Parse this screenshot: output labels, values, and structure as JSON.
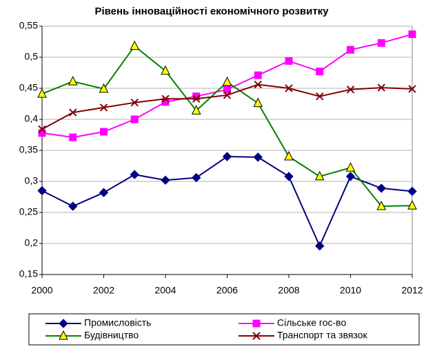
{
  "chart_data": {
    "type": "line",
    "title": "Рівень інноваційності економічного розвитку",
    "x": [
      2000,
      2001,
      2002,
      2003,
      2004,
      2005,
      2006,
      2007,
      2008,
      2009,
      2010,
      2011,
      2012
    ],
    "series": [
      {
        "name": "Промисловість",
        "color": "#000080",
        "marker": "diamond",
        "marker_fill": "#000080",
        "values": [
          0.285,
          0.26,
          0.282,
          0.311,
          0.302,
          0.306,
          0.34,
          0.339,
          0.308,
          0.196,
          0.308,
          0.289,
          0.284
        ]
      },
      {
        "name": "Сільське гос-во",
        "color": "#ff00ff",
        "marker": "square",
        "marker_fill": "#ff00ff",
        "values": [
          0.378,
          0.371,
          0.38,
          0.4,
          0.428,
          0.437,
          0.448,
          0.471,
          0.494,
          0.477,
          0.512,
          0.523,
          0.537
        ]
      },
      {
        "name": "Будівництво",
        "color": "#008000",
        "marker": "triangle",
        "marker_fill": "#ffff00",
        "values": [
          0.441,
          0.461,
          0.449,
          0.518,
          0.478,
          0.414,
          0.46,
          0.426,
          0.34,
          0.308,
          0.322,
          0.26,
          0.261
        ]
      },
      {
        "name": "Транспорт та звязок",
        "color": "#800000",
        "marker": "x",
        "marker_fill": "none",
        "values": [
          0.384,
          0.411,
          0.419,
          0.427,
          0.433,
          0.433,
          0.439,
          0.456,
          0.45,
          0.437,
          0.448,
          0.451,
          0.449
        ]
      }
    ],
    "xlim": [
      2000,
      2012
    ],
    "xticks": [
      2000,
      2002,
      2004,
      2006,
      2008,
      2010,
      2012
    ],
    "ylim": [
      0.15,
      0.55
    ],
    "yticks": [
      {
        "value": 0.15,
        "label": "0,15"
      },
      {
        "value": 0.2,
        "label": "0,2"
      },
      {
        "value": 0.25,
        "label": "0,25"
      },
      {
        "value": 0.3,
        "label": "0,3"
      },
      {
        "value": 0.35,
        "label": "0,35"
      },
      {
        "value": 0.4,
        "label": "0,4"
      },
      {
        "value": 0.45,
        "label": "0,45"
      },
      {
        "value": 0.5,
        "label": "0,5"
      },
      {
        "value": 0.55,
        "label": "0,55"
      }
    ],
    "grid": true,
    "legend": "bottom"
  }
}
